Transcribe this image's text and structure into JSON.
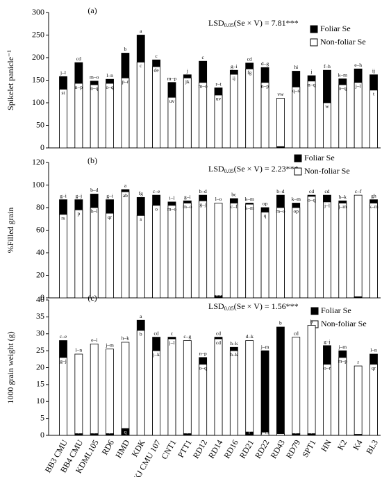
{
  "chart_data": [
    {
      "type": "bar",
      "panel": "(a)",
      "y_label": "Spikelet panicle⁻¹",
      "lsd": {
        "text": "LSD",
        "sub": "0.05",
        "rest": "(Se × V) = 7.81***"
      },
      "ylim": [
        0,
        300
      ],
      "yticks": [
        0,
        50,
        100,
        150,
        200,
        250,
        300
      ],
      "series": [
        {
          "name": "Foliar Se",
          "color": "#000000",
          "values": [
            158,
            189,
            148,
            152,
            210,
            250,
            195,
            145,
            162,
            192,
            133,
            172,
            188,
            178,
            3,
            170,
            160,
            172,
            153,
            175,
            162
          ],
          "labels": [
            "j–l",
            "cd",
            "m–o",
            "l–n",
            "b",
            "a",
            "c",
            "m–p",
            "j",
            "c",
            "r–t",
            "g–i",
            "cd",
            "d–g",
            "w",
            "hi",
            "j",
            "f–h",
            "k–m",
            "e–h",
            "ij"
          ]
        },
        {
          "name": "Non-foliar Se",
          "color": "#ffffff",
          "values": [
            130,
            143,
            140,
            143,
            155,
            190,
            180,
            112,
            155,
            145,
            117,
            163,
            175,
            145,
            110,
            135,
            148,
            100,
            140,
            145,
            128
          ],
          "labels": [
            "st",
            "n–p",
            "n–q",
            "o–q",
            "p–r",
            "c",
            "de",
            "uv",
            "jk",
            "m–o",
            "uv",
            "ij",
            "fg",
            "n–p",
            "vw",
            "q–s",
            "n–q",
            "w",
            "o–q",
            "j–l",
            "t"
          ]
        }
      ]
    },
    {
      "type": "bar",
      "panel": "(b)",
      "y_label": "%Filled grain",
      "lsd": {
        "text": "LSD",
        "sub": "0.05",
        "rest": "(Se × V) = 2.23***"
      },
      "ylim": [
        0,
        120
      ],
      "yticks": [
        0,
        20,
        40,
        60,
        80,
        100,
        120
      ],
      "series": [
        {
          "name": "Foliar Se",
          "color": "#000000",
          "values": [
            87,
            87,
            92,
            87,
            96,
            89,
            91,
            85,
            86,
            91,
            2,
            88,
            84,
            80,
            91,
            84,
            91,
            91,
            86,
            1,
            87
          ],
          "labels": [
            "g–i",
            "g–j",
            "b–d",
            "g–i",
            "a",
            "fg",
            "c–e",
            "i–l",
            "g–i",
            "b–d",
            "no",
            "bc",
            "k–m",
            "op",
            "b–d",
            "k–m",
            "cd",
            "cd",
            "h–k",
            "ef",
            "gh"
          ]
        },
        {
          "name": "Non-foliar Se",
          "color": "#ffffff",
          "values": [
            74,
            78,
            80,
            75,
            94,
            73,
            82,
            82,
            84,
            86,
            84,
            84,
            83,
            76,
            80,
            80,
            90,
            85,
            84,
            91,
            84
          ],
          "labels": [
            "rs",
            "p",
            "h–l",
            "qr",
            "ab",
            "s",
            "o",
            "m–o",
            "m–o",
            "g–j",
            "l–o",
            "c–f",
            "k–m",
            "q",
            "m–o",
            "op",
            "o–q",
            "j–l",
            "j–m",
            "c–f",
            "k–m"
          ]
        }
      ]
    },
    {
      "type": "bar",
      "panel": "(c)",
      "y_label": "1000 grain weight (g)",
      "lsd": {
        "text": "LSD",
        "sub": "0.05",
        "rest": "(Se × V) = 1.56***"
      },
      "ylim": [
        0,
        40
      ],
      "yticks": [
        0,
        5,
        10,
        15,
        20,
        25,
        30,
        35,
        40
      ],
      "categories": [
        "BB3 CMU",
        "BB4 CMU",
        "KDML105",
        "RD6",
        "HMD",
        "KDK",
        "KJ CMU 107",
        "CNT1",
        "PTT1",
        "RD12",
        "RD14",
        "RD16",
        "RD21",
        "RD22",
        "RD43",
        "RD79",
        "SPT1",
        "HN",
        "K2",
        "K4",
        "BL3"
      ],
      "series": [
        {
          "name": "Foliar Se",
          "color": "#000000",
          "values": [
            28,
            0.5,
            0.5,
            0.5,
            2,
            34,
            29,
            29,
            0.5,
            23,
            29,
            26,
            1,
            25,
            32,
            0.5,
            0.5,
            26.5,
            25,
            0.3,
            24
          ],
          "labels": [
            "c–e",
            "r",
            "r",
            "r",
            "q",
            "a",
            "cd",
            "c",
            "r",
            "n–p",
            "cd",
            "h–k",
            "r",
            "j–m",
            "b",
            "r",
            "r",
            "g–j",
            "j–m",
            "r",
            "l–n"
          ]
        },
        {
          "name": "Non-foliar Se",
          "color": "#ffffff",
          "values": [
            23,
            24,
            27,
            25.5,
            27.5,
            31,
            25,
            28.5,
            28,
            21,
            28.5,
            25,
            28,
            1,
            0.5,
            29,
            32.5,
            21,
            23,
            20.5,
            21
          ],
          "labels": [
            "g–j",
            "l–n",
            "e–i",
            "j–m",
            "h–k",
            "b",
            "j–k",
            "j–l",
            "c–g",
            "o–q",
            "cd",
            "h–k",
            "d–k",
            "j–m",
            "b",
            "cd",
            "b",
            "o–r",
            "m–p",
            "r",
            "qr"
          ]
        }
      ]
    }
  ]
}
